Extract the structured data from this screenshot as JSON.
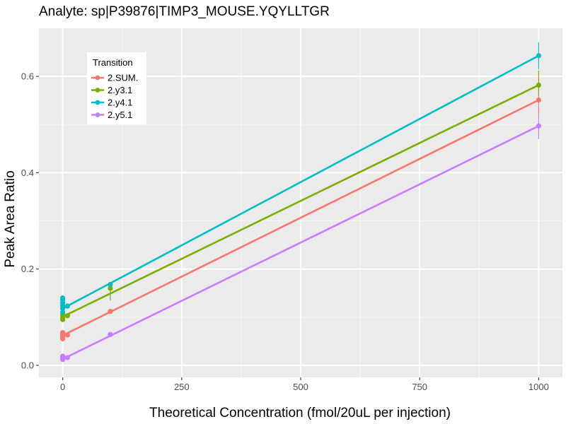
{
  "chart_data": {
    "type": "line",
    "title": "Analyte: sp|P39876|TIMP3_MOUSE.YQYLLTGR",
    "xlabel": "Theoretical Concentration (fmol/20uL per injection)",
    "ylabel": "Peak Area Ratio",
    "xlim": [
      -50,
      1050
    ],
    "ylim": [
      -0.025,
      0.7
    ],
    "x_ticks": [
      0,
      250,
      500,
      750,
      1000
    ],
    "y_ticks": [
      0.0,
      0.2,
      0.4,
      0.6
    ],
    "x_tick_labels": [
      "0",
      "250",
      "500",
      "750",
      "1000"
    ],
    "y_tick_labels": [
      "0.0",
      "0.2",
      "0.4",
      "0.6"
    ],
    "grid": true,
    "legend": {
      "title": "Transition",
      "position": "top-left"
    },
    "series": [
      {
        "name": "2.SUM.",
        "color": "#F8766D",
        "fit": [
          [
            0,
            0.062
          ],
          [
            1000,
            0.551
          ]
        ],
        "points": [
          {
            "x": 0,
            "y": 0.055
          },
          {
            "x": 0,
            "y": 0.058
          },
          {
            "x": 0,
            "y": 0.061
          },
          {
            "x": 0,
            "y": 0.064
          },
          {
            "x": 0,
            "y": 0.068
          },
          {
            "x": 10,
            "y": 0.063
          },
          {
            "x": 100,
            "y": 0.112
          },
          {
            "x": 1000,
            "y": 0.551
          }
        ],
        "errorbars": [
          {
            "x": 1000,
            "low": 0.52,
            "high": 0.582
          }
        ]
      },
      {
        "name": "2.y3.1",
        "color": "#7CAE00",
        "fit": [
          [
            0,
            0.101
          ],
          [
            1000,
            0.582
          ]
        ],
        "points": [
          {
            "x": 0,
            "y": 0.095
          },
          {
            "x": 0,
            "y": 0.1
          },
          {
            "x": 0,
            "y": 0.105
          },
          {
            "x": 10,
            "y": 0.103
          },
          {
            "x": 100,
            "y": 0.16
          },
          {
            "x": 1000,
            "y": 0.582
          }
        ],
        "errorbars": [
          {
            "x": 100,
            "low": 0.135,
            "high": 0.17
          },
          {
            "x": 1000,
            "low": 0.56,
            "high": 0.612
          }
        ]
      },
      {
        "name": "2.y4.1",
        "color": "#00BFC4",
        "fit": [
          [
            0,
            0.118
          ],
          [
            1000,
            0.643
          ]
        ],
        "points": [
          {
            "x": 0,
            "y": 0.11
          },
          {
            "x": 0,
            "y": 0.118
          },
          {
            "x": 0,
            "y": 0.124
          },
          {
            "x": 0,
            "y": 0.13
          },
          {
            "x": 0,
            "y": 0.136
          },
          {
            "x": 0,
            "y": 0.14
          },
          {
            "x": 10,
            "y": 0.123
          },
          {
            "x": 100,
            "y": 0.168
          },
          {
            "x": 1000,
            "y": 0.643
          }
        ],
        "errorbars": [
          {
            "x": 1000,
            "low": 0.615,
            "high": 0.671
          }
        ]
      },
      {
        "name": "2.y5.1",
        "color": "#C77CFF",
        "fit": [
          [
            0,
            0.013
          ],
          [
            1000,
            0.497
          ]
        ],
        "points": [
          {
            "x": 0,
            "y": 0.012
          },
          {
            "x": 0,
            "y": 0.015
          },
          {
            "x": 0,
            "y": 0.019
          },
          {
            "x": 10,
            "y": 0.016
          },
          {
            "x": 100,
            "y": 0.064
          },
          {
            "x": 1000,
            "y": 0.497
          }
        ],
        "errorbars": [
          {
            "x": 1000,
            "low": 0.47,
            "high": 0.522
          }
        ]
      }
    ]
  }
}
